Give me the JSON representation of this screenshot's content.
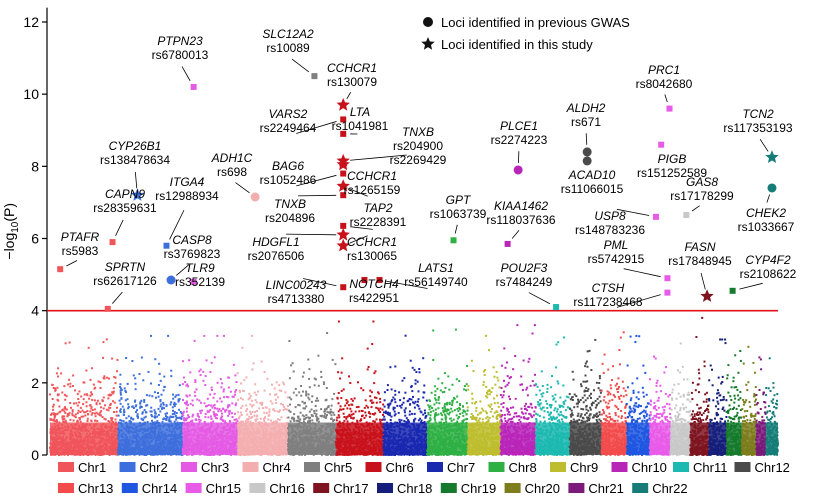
{
  "chart_data": {
    "type": "scatter",
    "title": "",
    "xlabel": "",
    "ylabel": "−log10(P)",
    "ylim": [
      0,
      12.4
    ],
    "yticks": [
      "0",
      "2",
      "4",
      "6",
      "8",
      "10",
      "12"
    ],
    "grid": false,
    "threshold": 4,
    "legend_markers": [
      {
        "shape": "circle",
        "label": "Loci identified in previous GWAS"
      },
      {
        "shape": "star",
        "label": "Loci identified in this study"
      }
    ],
    "chromosomes": [
      {
        "name": "Chr1",
        "color": "#f0555a"
      },
      {
        "name": "Chr2",
        "color": "#3d6fdc"
      },
      {
        "name": "Chr3",
        "color": "#e45ae4"
      },
      {
        "name": "Chr4",
        "color": "#f3aeb0"
      },
      {
        "name": "Chr5",
        "color": "#7f7f7f"
      },
      {
        "name": "Chr6",
        "color": "#c8121b"
      },
      {
        "name": "Chr7",
        "color": "#1a28b0"
      },
      {
        "name": "Chr8",
        "color": "#2eb044"
      },
      {
        "name": "Chr9",
        "color": "#bdbd2e"
      },
      {
        "name": "Chr10",
        "color": "#b826b8"
      },
      {
        "name": "Chr11",
        "color": "#1cb9b0"
      },
      {
        "name": "Chr12",
        "color": "#4a4a4a"
      },
      {
        "name": "Chr13",
        "color": "#f24b4b"
      },
      {
        "name": "Chr14",
        "color": "#1f56e0"
      },
      {
        "name": "Chr15",
        "color": "#e85be8"
      },
      {
        "name": "Chr16",
        "color": "#c8c8c8"
      },
      {
        "name": "Chr17",
        "color": "#7d1420"
      },
      {
        "name": "Chr18",
        "color": "#151e7a"
      },
      {
        "name": "Chr19",
        "color": "#157a2c"
      },
      {
        "name": "Chr20",
        "color": "#7d7d1d"
      },
      {
        "name": "Chr21",
        "color": "#7b1a7b"
      },
      {
        "name": "Chr22",
        "color": "#157c78"
      }
    ],
    "chrom_background_max": [
      3.5,
      3.3,
      3.3,
      3.3,
      3.8,
      3.7,
      3.6,
      3.5,
      3.3,
      3.6,
      3.3,
      3.8,
      3.4,
      3.3,
      3.3,
      3.2,
      3.8,
      3.2,
      3.1,
      3.0,
      2.9,
      2.7
    ],
    "loci": [
      {
        "gene": "PTAFR",
        "snp": "rs5983",
        "chr": "Chr1",
        "pos": 0.15,
        "p": 5.15,
        "shape": "square"
      },
      {
        "gene": "SPRTN",
        "snp": "rs62617126",
        "chr": "Chr1",
        "pos": 0.85,
        "p": 4.05,
        "shape": "square"
      },
      {
        "gene": "CAPN9",
        "snp": "rs28359631",
        "chr": "Chr1",
        "pos": 0.92,
        "p": 5.9,
        "shape": "square"
      },
      {
        "gene": "CYP26B1",
        "snp": "rs138478634",
        "chr": "Chr2",
        "pos": 0.3,
        "p": 7.2,
        "shape": "star"
      },
      {
        "gene": "ITGA4",
        "snp": "rs12988934",
        "chr": "Chr2",
        "pos": 0.75,
        "p": 5.8,
        "shape": "square"
      },
      {
        "gene": "CASP8",
        "snp": "rs3769823",
        "chr": "Chr2",
        "pos": 0.82,
        "p": 4.85,
        "shape": "circle"
      },
      {
        "gene": "PTPN23",
        "snp": "rs6780013",
        "chr": "Chr3",
        "pos": 0.2,
        "p": 10.2,
        "shape": "square"
      },
      {
        "gene": "TLR9",
        "snp": "rs352139",
        "chr": "Chr3",
        "pos": 0.2,
        "p": 4.8,
        "shape": "square"
      },
      {
        "gene": "ADH1C",
        "snp": "rs698",
        "chr": "Chr4",
        "pos": 0.35,
        "p": 7.15,
        "shape": "circle"
      },
      {
        "gene": "SLC12A2",
        "snp": "rs10089",
        "chr": "Chr5",
        "pos": 0.55,
        "p": 10.5,
        "shape": "square"
      },
      {
        "gene": "CCHCR1",
        "snp": "rs130079",
        "chr": "Chr6",
        "pos": 0.15,
        "p": 9.7,
        "shape": "star"
      },
      {
        "gene": "VARS2",
        "snp": "rs2249464",
        "chr": "Chr6",
        "pos": 0.15,
        "p": 9.3,
        "shape": "square"
      },
      {
        "gene": "LTA",
        "snp": "rs1041981",
        "chr": "Chr6",
        "pos": 0.15,
        "p": 8.9,
        "shape": "square"
      },
      {
        "gene": "TNXB",
        "snp": "rs204900",
        "chr": "Chr6",
        "pos": 0.15,
        "p": 8.15,
        "shape": "star"
      },
      {
        "gene": "TNXB",
        "snp": "rs2269429",
        "chr": "Chr6",
        "pos": 0.15,
        "p": 8.05,
        "shape": "star"
      },
      {
        "gene": "BAG6",
        "snp": "rs1052486",
        "chr": "Chr6",
        "pos": 0.15,
        "p": 7.8,
        "shape": "square"
      },
      {
        "gene": "CCHCR1",
        "snp": "rs1265159",
        "chr": "Chr6",
        "pos": 0.15,
        "p": 7.45,
        "shape": "star"
      },
      {
        "gene": "TNXB",
        "snp": "rs204896",
        "chr": "Chr6",
        "pos": 0.15,
        "p": 7.2,
        "shape": "square"
      },
      {
        "gene": "TAP2",
        "snp": "rs2228391",
        "chr": "Chr6",
        "pos": 0.15,
        "p": 6.35,
        "shape": "square"
      },
      {
        "gene": "HDGFL1",
        "snp": "rs2076506",
        "chr": "Chr6",
        "pos": 0.15,
        "p": 6.1,
        "shape": "star"
      },
      {
        "gene": "CCHCR1",
        "snp": "rs130065",
        "chr": "Chr6",
        "pos": 0.15,
        "p": 5.8,
        "shape": "star"
      },
      {
        "gene": "LINC00243",
        "snp": "rs4713380",
        "chr": "Chr6",
        "pos": 0.15,
        "p": 4.65,
        "shape": "square"
      },
      {
        "gene": "NOTCH4",
        "snp": "rs422951",
        "chr": "Chr6",
        "pos": 0.6,
        "p": 4.85,
        "shape": "square"
      },
      {
        "gene": "GPT",
        "snp": "rs1063739",
        "chr": "Chr8",
        "pos": 0.65,
        "p": 5.95,
        "shape": "square"
      },
      {
        "gene": "LATS1",
        "snp": "rs56149740",
        "chr": "Chr6",
        "pos": 0.92,
        "p": 4.85,
        "shape": "square"
      },
      {
        "gene": "PLCE1",
        "snp": "rs2274223",
        "chr": "Chr10",
        "pos": 0.5,
        "p": 7.9,
        "shape": "circle"
      },
      {
        "gene": "KIAA1462",
        "snp": "rs118037636",
        "chr": "Chr10",
        "pos": 0.2,
        "p": 5.85,
        "shape": "square"
      },
      {
        "gene": "POU2F3",
        "snp": "rs7484249",
        "chr": "Chr11",
        "pos": 0.6,
        "p": 4.1,
        "shape": "square"
      },
      {
        "gene": "ALDH2",
        "snp": "rs671",
        "chr": "Chr12",
        "pos": 0.55,
        "p": 8.4,
        "shape": "circle"
      },
      {
        "gene": "ACAD10",
        "snp": "rs11066015",
        "chr": "Chr12",
        "pos": 0.55,
        "p": 8.15,
        "shape": "circle"
      },
      {
        "gene": "USP8",
        "snp": "rs148783236",
        "chr": "Chr15",
        "pos": 0.3,
        "p": 6.6,
        "shape": "square"
      },
      {
        "gene": "PML",
        "snp": "rs5742915",
        "chr": "Chr15",
        "pos": 0.85,
        "p": 4.9,
        "shape": "square"
      },
      {
        "gene": "CTSH",
        "snp": "rs117238468",
        "chr": "Chr15",
        "pos": 0.85,
        "p": 4.5,
        "shape": "square"
      },
      {
        "gene": "PRC1",
        "snp": "rs8042680",
        "chr": "Chr15",
        "pos": 0.95,
        "p": 9.6,
        "shape": "square"
      },
      {
        "gene": "PIGB",
        "snp": "rs151252589",
        "chr": "Chr15",
        "pos": 0.55,
        "p": 8.6,
        "shape": "square"
      },
      {
        "gene": "GAS8",
        "snp": "rs17178299",
        "chr": "Chr16",
        "pos": 0.8,
        "p": 6.65,
        "shape": "square"
      },
      {
        "gene": "FASN",
        "snp": "rs17848945",
        "chr": "Chr17",
        "pos": 0.9,
        "p": 4.4,
        "shape": "star"
      },
      {
        "gene": "CYP4F2",
        "snp": "rs2108622",
        "chr": "Chr19",
        "pos": 0.4,
        "p": 4.55,
        "shape": "square"
      },
      {
        "gene": "TCN2",
        "snp": "rs117353193",
        "chr": "Chr22",
        "pos": 0.5,
        "p": 8.25,
        "shape": "star"
      },
      {
        "gene": "CHEK2",
        "snp": "rs1033667",
        "chr": "Chr22",
        "pos": 0.5,
        "p": 7.4,
        "shape": "circle"
      }
    ]
  }
}
